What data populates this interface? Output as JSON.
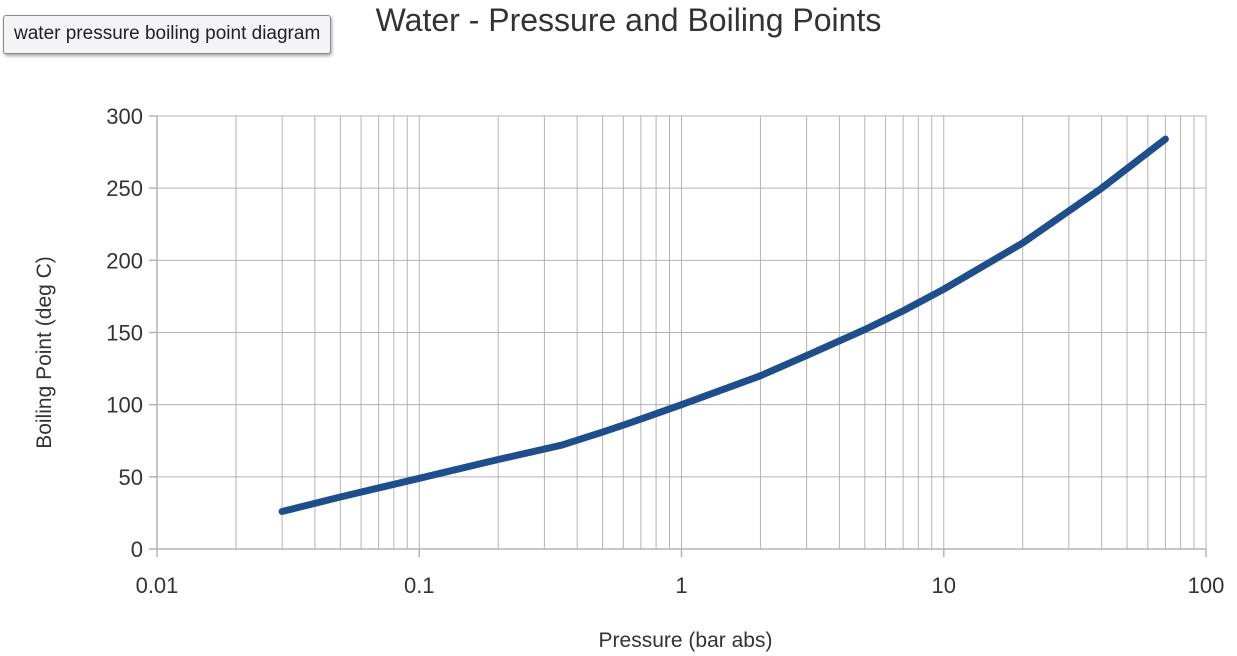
{
  "tooltip": {
    "text": "water pressure boiling point diagram"
  },
  "chart_data": {
    "type": "line",
    "title": "Water - Pressure and Boiling Points",
    "xlabel": "Pressure (bar abs)",
    "ylabel": "Boiling Point (deg C)",
    "xscale": "log",
    "xlim": [
      0.01,
      100
    ],
    "ylim": [
      0,
      300
    ],
    "x_ticks": [
      0.01,
      0.1,
      1,
      10,
      100
    ],
    "x_tick_labels": [
      "0.01",
      "0.1",
      "1",
      "10",
      "100"
    ],
    "y_ticks": [
      0,
      50,
      100,
      150,
      200,
      250,
      300
    ],
    "y_tick_labels": [
      "0",
      "50",
      "100",
      "150",
      "200",
      "250",
      "300"
    ],
    "grid": true,
    "series": [
      {
        "color": "#1f4e8c",
        "points": [
          {
            "x": 0.03,
            "y": 26
          },
          {
            "x": 0.05,
            "y": 36
          },
          {
            "x": 0.1,
            "y": 49
          },
          {
            "x": 0.2,
            "y": 62
          },
          {
            "x": 0.35,
            "y": 72
          },
          {
            "x": 0.5,
            "y": 81
          },
          {
            "x": 0.7,
            "y": 90
          },
          {
            "x": 1,
            "y": 100
          },
          {
            "x": 2,
            "y": 120
          },
          {
            "x": 3,
            "y": 134
          },
          {
            "x": 5,
            "y": 152
          },
          {
            "x": 7,
            "y": 165
          },
          {
            "x": 10,
            "y": 180
          },
          {
            "x": 20,
            "y": 212
          },
          {
            "x": 40,
            "y": 250
          },
          {
            "x": 70,
            "y": 284
          }
        ]
      }
    ]
  }
}
